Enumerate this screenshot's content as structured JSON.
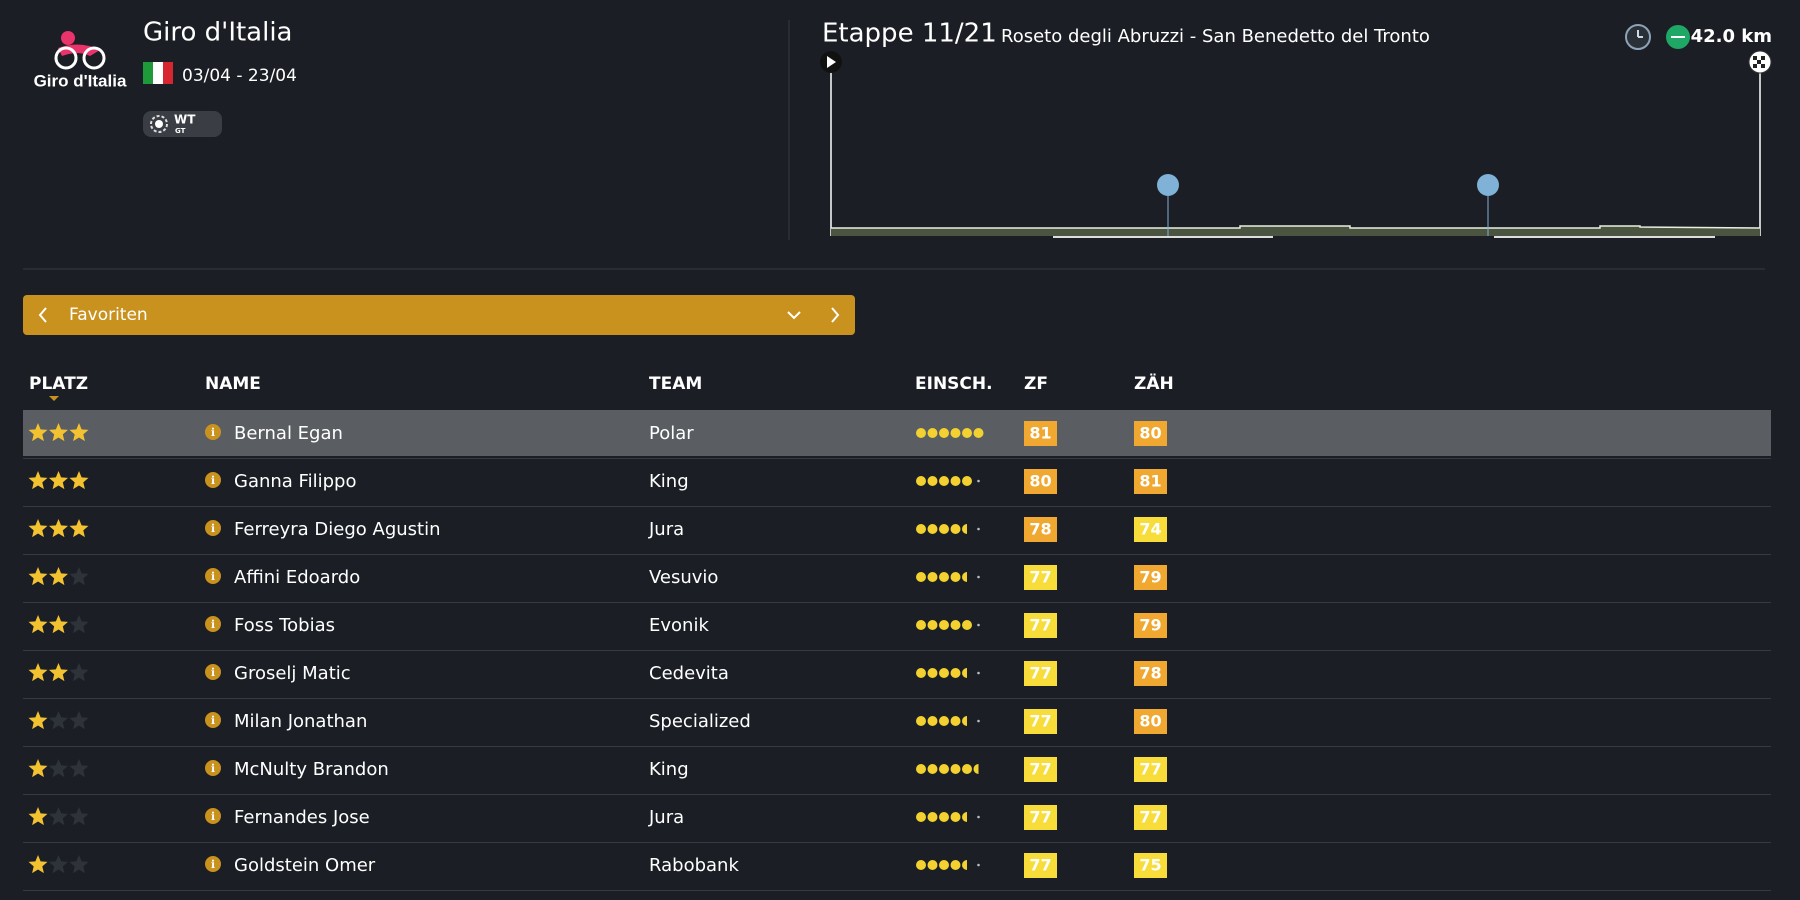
{
  "header": {
    "logo_text": "Giro d'Italia",
    "title": "Giro d'Italia",
    "dates": "03/04 - 23/04",
    "badge": [
      "WT",
      "GT"
    ]
  },
  "stage": {
    "label": "Etappe 11/21",
    "route": "Roseto degli Abruzzi - San Benedetto del Tronto",
    "distance": "42.0 km"
  },
  "filter": {
    "label": "Favoriten"
  },
  "table": {
    "columns": [
      "PLATZ",
      "NAME",
      "TEAM",
      "EINSCH.",
      "ZF",
      "ZÄH"
    ],
    "rows": [
      {
        "stars": 3,
        "name": "Bernal Egan",
        "team": "Polar",
        "rating": 6,
        "zf": 81,
        "zah": 80
      },
      {
        "stars": 3,
        "name": "Ganna Filippo",
        "team": "King",
        "rating": 5,
        "zf": 80,
        "zah": 81
      },
      {
        "stars": 3,
        "name": "Ferreyra Diego Agustin",
        "team": "Jura",
        "rating": 4.5,
        "zf": 78,
        "zah": 74
      },
      {
        "stars": 2,
        "name": "Affini Edoardo",
        "team": "Vesuvio",
        "rating": 4.5,
        "zf": 77,
        "zah": 79
      },
      {
        "stars": 2,
        "name": "Foss Tobias",
        "team": "Evonik",
        "rating": 5,
        "zf": 77,
        "zah": 79
      },
      {
        "stars": 2,
        "name": "Groselj Matic",
        "team": "Cedevita",
        "rating": 4.5,
        "zf": 77,
        "zah": 78
      },
      {
        "stars": 1,
        "name": "Milan Jonathan",
        "team": "Specialized",
        "rating": 4.5,
        "zf": 77,
        "zah": 80
      },
      {
        "stars": 1,
        "name": "McNulty Brandon",
        "team": "King",
        "rating": 5.5,
        "zf": 77,
        "zah": 77
      },
      {
        "stars": 1,
        "name": "Fernandes Jose",
        "team": "Jura",
        "rating": 4.5,
        "zf": 77,
        "zah": 77
      },
      {
        "stars": 1,
        "name": "Goldstein Omer",
        "team": "Rabobank",
        "rating": 4.5,
        "zf": 77,
        "zah": 75
      }
    ]
  }
}
